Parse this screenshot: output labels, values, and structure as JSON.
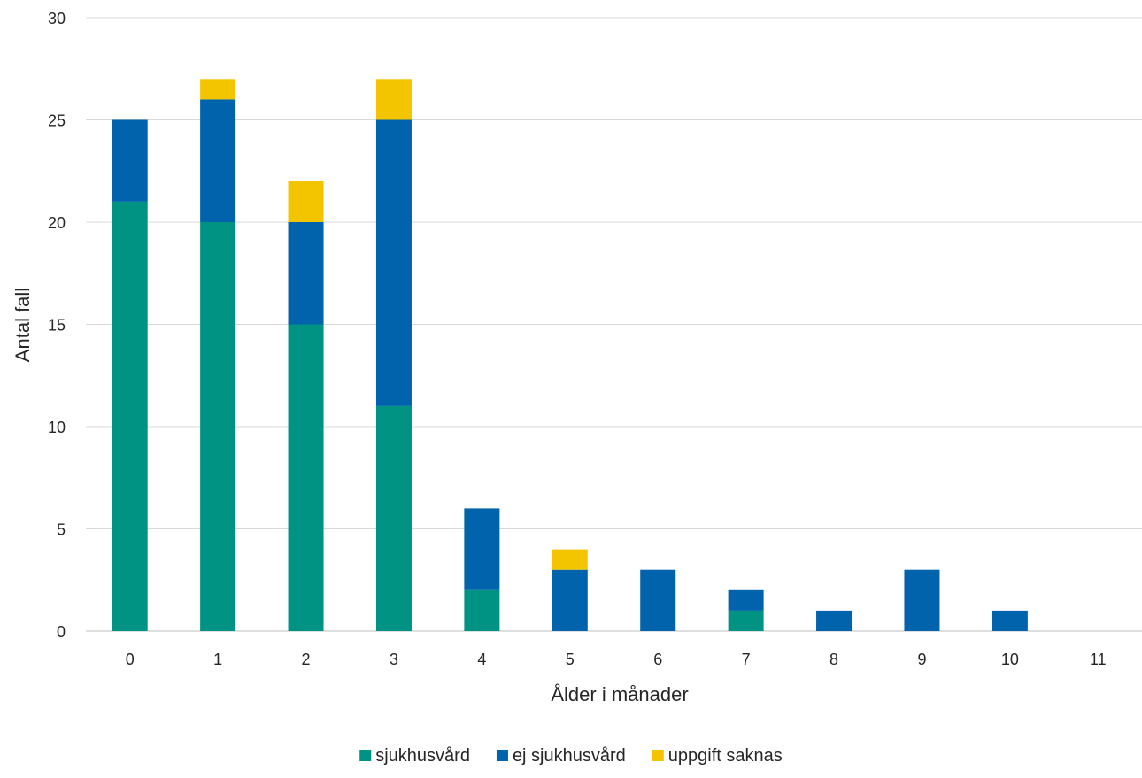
{
  "chart_data": {
    "type": "bar",
    "stacked": true,
    "categories": [
      "0",
      "1",
      "2",
      "3",
      "4",
      "5",
      "6",
      "7",
      "8",
      "9",
      "10",
      "11"
    ],
    "series": [
      {
        "name": "sjukhusvård",
        "color": "#009383",
        "values": [
          21,
          20,
          15,
          11,
          2,
          0,
          0,
          1,
          0,
          0,
          0,
          0
        ]
      },
      {
        "name": "ej sjukhusvård",
        "color": "#0063AB",
        "values": [
          4,
          6,
          5,
          14,
          4,
          3,
          3,
          1,
          1,
          3,
          1,
          0
        ]
      },
      {
        "name": "uppgift saknas",
        "color": "#F2C500",
        "values": [
          0,
          1,
          2,
          2,
          0,
          1,
          0,
          0,
          0,
          0,
          0,
          0
        ]
      }
    ],
    "xlabel": "Ålder i månader",
    "ylabel": "Antal fall",
    "ylim": [
      0,
      30
    ],
    "yticks": [
      0,
      5,
      10,
      15,
      20,
      25,
      30
    ],
    "grid": true,
    "legend_position": "bottom"
  }
}
